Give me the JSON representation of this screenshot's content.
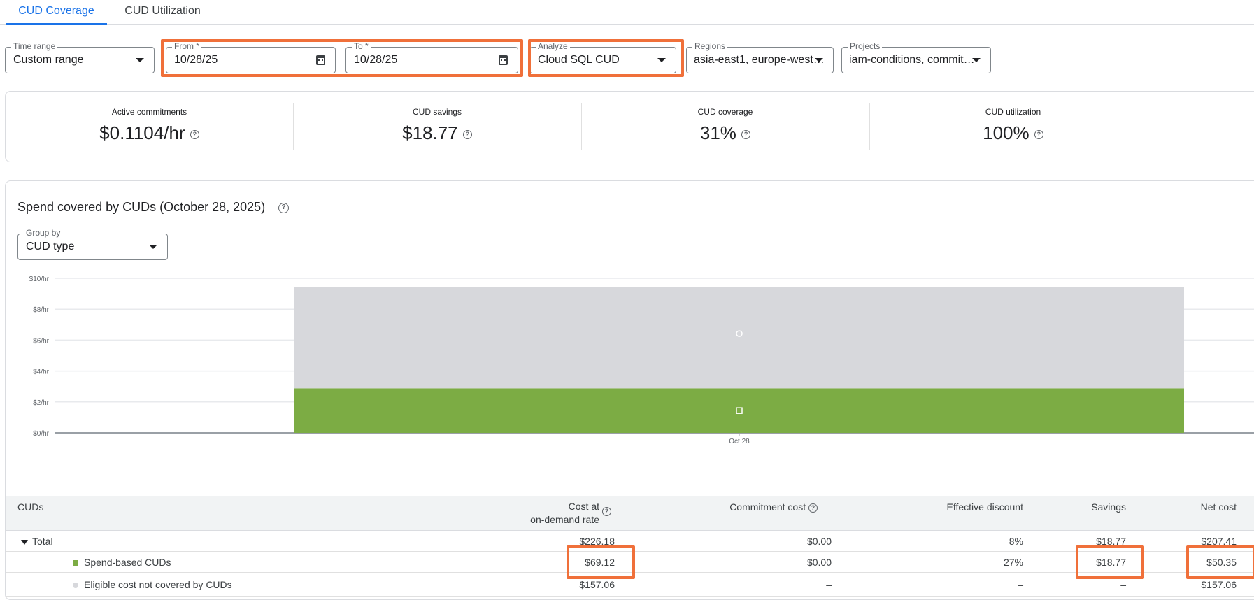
{
  "tabs": [
    {
      "label": "CUD Coverage",
      "active": true
    },
    {
      "label": "CUD Utilization",
      "active": false
    }
  ],
  "filters": {
    "time_range": {
      "label": "Time range",
      "value": "Custom range"
    },
    "from": {
      "label": "From *",
      "value": "10/28/25"
    },
    "to": {
      "label": "To *",
      "value": "10/28/25"
    },
    "analyze": {
      "label": "Analyze",
      "value": "Cloud SQL CUD"
    },
    "regions": {
      "label": "Regions",
      "value": "asia-east1, europe-west…"
    },
    "projects": {
      "label": "Projects",
      "value": "iam-conditions, commit…"
    }
  },
  "kpis": [
    {
      "label": "Active commitments",
      "value": "$0.1104/hr"
    },
    {
      "label": "CUD savings",
      "value": "$18.77"
    },
    {
      "label": "CUD coverage",
      "value": "31%"
    },
    {
      "label": "CUD utilization",
      "value": "100%"
    }
  ],
  "chart_section": {
    "title": "Spend covered by CUDs (October 28, 2025)",
    "group_by": {
      "label": "Group by",
      "value": "CUD type"
    }
  },
  "chart_data": {
    "type": "bar",
    "stacked": true,
    "categories": [
      "Oct 28"
    ],
    "series": [
      {
        "name": "Spend-based CUDs",
        "values": [
          2.88
        ],
        "color": "#7cac44"
      },
      {
        "name": "Eligible cost not covered by CUDs",
        "values": [
          6.54
        ],
        "color": "#d7d8dc"
      }
    ],
    "yticks": [
      "$0/hr",
      "$2/hr",
      "$4/hr",
      "$6/hr",
      "$8/hr",
      "$10/hr"
    ],
    "ylim": [
      0,
      10
    ],
    "grid": true
  },
  "table": {
    "headers": {
      "cuds": "CUDs",
      "cost_line1": "Cost at",
      "cost_line2": "on-demand rate",
      "commitment": "Commitment cost",
      "discount": "Effective discount",
      "savings": "Savings",
      "net": "Net cost"
    },
    "rows": [
      {
        "name": "Total",
        "cost": "$226.18",
        "commitment": "$0.00",
        "discount": "8%",
        "savings": "$18.77",
        "net": "$207.41"
      },
      {
        "name": "Spend-based CUDs",
        "cost": "$69.12",
        "commitment": "$0.00",
        "discount": "27%",
        "savings": "$18.77",
        "net": "$50.35"
      },
      {
        "name": "Eligible cost not covered by CUDs",
        "cost": "$157.06",
        "commitment": "–",
        "discount": "–",
        "savings": "–",
        "net": "$157.06"
      }
    ]
  },
  "colors": {
    "accent": "#1a73e8",
    "highlight": "#f0703a",
    "green": "#7cac44",
    "gray": "#d7d8dc"
  }
}
